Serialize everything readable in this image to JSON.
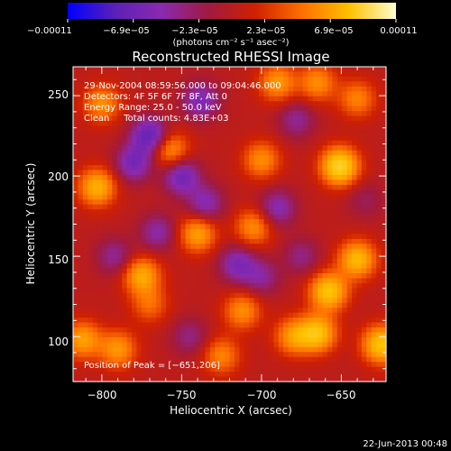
{
  "chart_data": {
    "type": "heatmap",
    "title": "Reconstructed RHESSI Image",
    "xlabel": "Heliocentric X (arcsec)",
    "ylabel": "Heliocentric Y (arcsec)",
    "xlim": [
      -818,
      -622
    ],
    "ylim": [
      72,
      268
    ],
    "x_ticks": [
      -800,
      -750,
      -700,
      -650
    ],
    "x_tick_labels": [
      "−800",
      "−750",
      "−700",
      "−650"
    ],
    "y_ticks": [
      100,
      150,
      200,
      250
    ],
    "y_tick_labels": [
      "100",
      "150",
      "200",
      "250"
    ],
    "grid": false,
    "colorbar": {
      "range": [
        -0.00011,
        0.00011
      ],
      "tick_labels": [
        "−0.00011",
        "−6.9e−05",
        "−2.3e−05",
        "2.3e−05",
        "6.9e−05",
        "0.00011"
      ],
      "units_label": "(photons cm⁻² s⁻¹ asec⁻²)",
      "colors": [
        "#0000ff",
        "#5a20b8",
        "#8a2ab0",
        "#a01a40",
        "#d02000",
        "#ff7000",
        "#ffc000",
        "#ffffd0"
      ]
    },
    "info_lines": [
      "29-Nov-2004 08:59:56.000 to 09:04:46.000",
      "Detectors: 4F 5F 6F 7F 8F, Att 0",
      "Energy Range: 25.0 - 50.0 keV",
      "Clean     Total counts: 4.83E+03"
    ],
    "peak_label": "Position of Peak = [−651,206]",
    "peak_position": [
      -651,
      206
    ],
    "sources": [
      {
        "x": -651,
        "y": 206,
        "v": 1.0
      },
      {
        "x": -658,
        "y": 128,
        "v": 0.85
      },
      {
        "x": -640,
        "y": 148,
        "v": 0.75
      },
      {
        "x": -665,
        "y": 102,
        "v": 0.8
      },
      {
        "x": -625,
        "y": 95,
        "v": 0.85
      },
      {
        "x": -803,
        "y": 193,
        "v": 0.7
      },
      {
        "x": -812,
        "y": 98,
        "v": 0.6
      },
      {
        "x": -790,
        "y": 92,
        "v": 0.55
      },
      {
        "x": -775,
        "y": 138,
        "v": 0.65
      },
      {
        "x": -800,
        "y": 245,
        "v": 0.5
      },
      {
        "x": -757,
        "y": 216,
        "v": 0.55
      },
      {
        "x": -740,
        "y": 164,
        "v": 0.6
      },
      {
        "x": -700,
        "y": 210,
        "v": 0.5
      },
      {
        "x": -705,
        "y": 168,
        "v": 0.5
      },
      {
        "x": -712,
        "y": 116,
        "v": 0.5
      },
      {
        "x": -690,
        "y": 258,
        "v": 0.55
      },
      {
        "x": -665,
        "y": 258,
        "v": 0.5
      },
      {
        "x": -725,
        "y": 88,
        "v": 0.45
      },
      {
        "x": -640,
        "y": 248,
        "v": 0.45
      },
      {
        "x": -680,
        "y": 100,
        "v": 0.55
      },
      {
        "x": -770,
        "y": 120,
        "v": 0.35
      },
      {
        "x": -750,
        "y": 200,
        "v": -0.6
      },
      {
        "x": -770,
        "y": 225,
        "v": -0.7
      },
      {
        "x": -780,
        "y": 208,
        "v": -0.55
      },
      {
        "x": -738,
        "y": 247,
        "v": -0.5
      },
      {
        "x": -715,
        "y": 145,
        "v": -0.5
      },
      {
        "x": -765,
        "y": 165,
        "v": -0.4
      },
      {
        "x": -735,
        "y": 183,
        "v": -0.45
      },
      {
        "x": -792,
        "y": 150,
        "v": -0.35
      },
      {
        "x": -690,
        "y": 180,
        "v": -0.45
      },
      {
        "x": -700,
        "y": 137,
        "v": -0.35
      },
      {
        "x": -675,
        "y": 150,
        "v": -0.3
      },
      {
        "x": -745,
        "y": 100,
        "v": -0.3
      },
      {
        "x": -678,
        "y": 235,
        "v": -0.35
      },
      {
        "x": -635,
        "y": 185,
        "v": -0.2
      }
    ]
  },
  "footer": {
    "date": "22-Jun-2013 00:48"
  }
}
